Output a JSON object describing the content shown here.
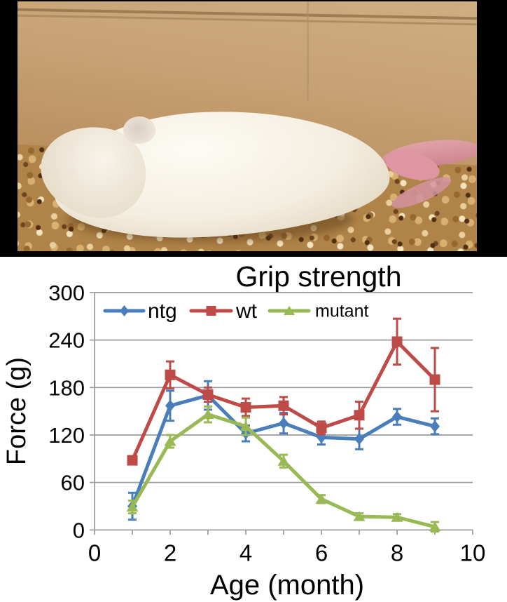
{
  "photo": {
    "alt": "white laboratory mouse lying on its side on wood-chip bedding in a cage",
    "wall_color": "#c4a072",
    "bedding_color": "#b08348",
    "mouse_color": "#f4efe3",
    "feet_color": "#dd96a2",
    "frame_color": "#000000"
  },
  "chart_data": {
    "type": "line",
    "title": "Grip strength",
    "xlabel": "Age (month)",
    "ylabel": "Force (g)",
    "x": [
      1,
      2,
      3,
      4,
      5,
      6,
      7,
      8,
      9
    ],
    "xlim": [
      0,
      10
    ],
    "ylim": [
      0,
      300
    ],
    "xticks": [
      0,
      2,
      4,
      6,
      8,
      10
    ],
    "yticks": [
      0,
      60,
      120,
      180,
      240,
      300
    ],
    "grid": true,
    "legend_position": "top-inside",
    "axis_color": "#9a9a9a",
    "series": [
      {
        "name": "ntg",
        "marker": "diamond",
        "color": "#4a7ebb",
        "values": [
          30,
          157,
          170,
          122,
          135,
          117,
          115,
          143,
          131
        ],
        "errors": [
          17,
          19,
          18,
          10,
          13,
          9,
          13,
          10,
          10
        ]
      },
      {
        "name": "wt",
        "marker": "square",
        "color": "#be4b48",
        "values": [
          88,
          196,
          171,
          155,
          157,
          129,
          145,
          238,
          190
        ],
        "errors": [
          5,
          17,
          9,
          11,
          11,
          8,
          17,
          29,
          40
        ]
      },
      {
        "name": "mutant",
        "marker": "triangle",
        "color": "#98b954",
        "values": [
          29,
          112,
          146,
          131,
          87,
          39,
          17,
          16,
          4
        ],
        "errors": [
          8,
          8,
          10,
          11,
          8,
          5,
          4,
          4,
          6
        ]
      }
    ]
  }
}
